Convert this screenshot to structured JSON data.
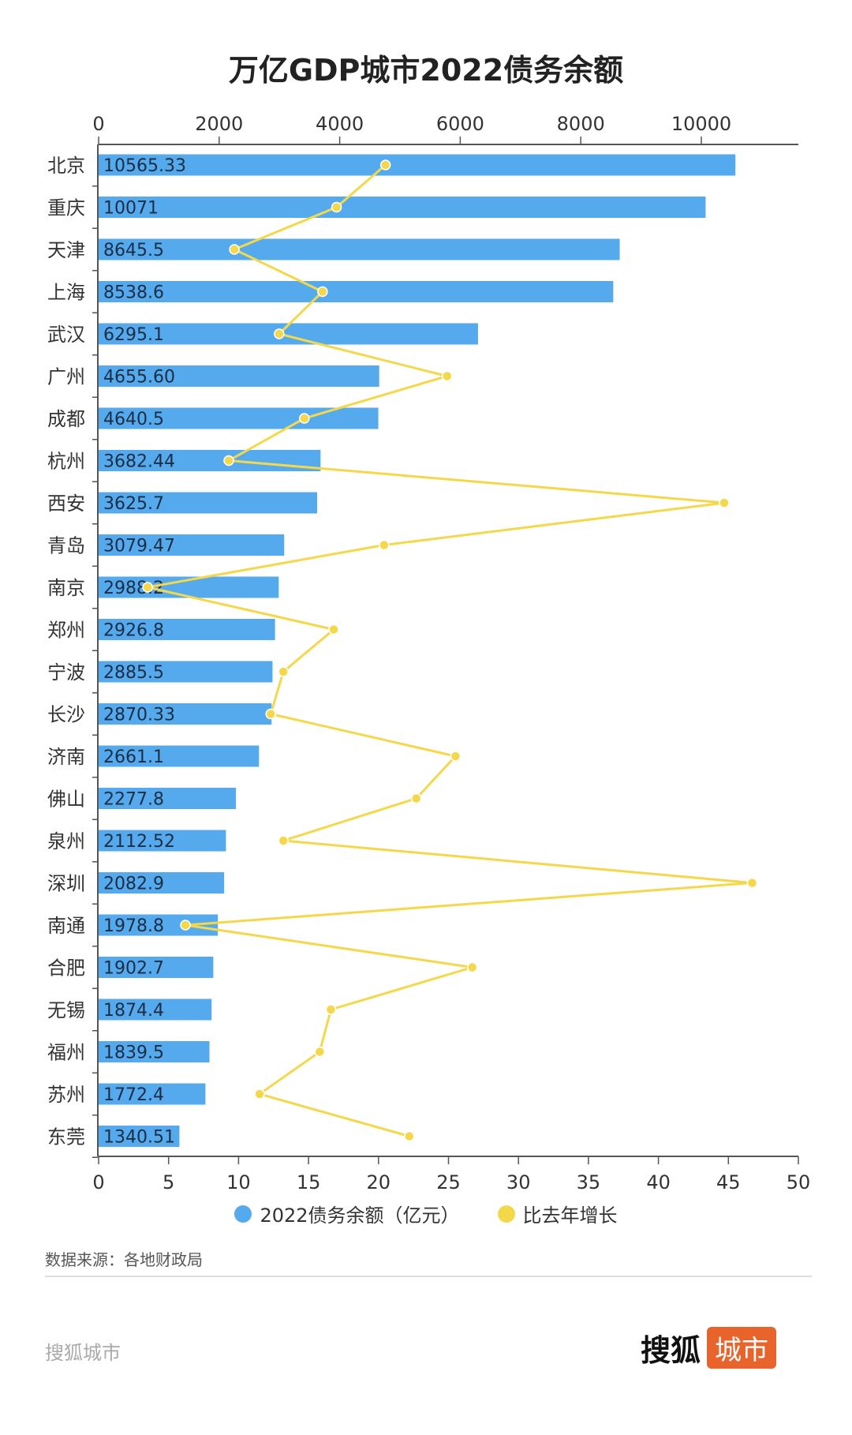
{
  "chart_data": {
    "type": "bar",
    "title": "万亿GDP城市2022债务余额",
    "categories": [
      "北京",
      "重庆",
      "天津",
      "上海",
      "武汉",
      "广州",
      "成都",
      "杭州",
      "西安",
      "青岛",
      "南京",
      "郑州",
      "宁波",
      "长沙",
      "济南",
      "佛山",
      "泉州",
      "深圳",
      "南通",
      "合肥",
      "无锡",
      "福州",
      "苏州",
      "东莞"
    ],
    "series": [
      {
        "name": "2022债务余额（亿元）",
        "type": "bar",
        "axis": "top",
        "color": "#55aaee",
        "labels": [
          "10565.33",
          "10071",
          "8645.5",
          "8538.6",
          "6295.1",
          "4655.60",
          "4640.5",
          "3682.44",
          "3625.7",
          "3079.47",
          "2988.2",
          "2926.8",
          "2885.5",
          "2870.33",
          "2661.1",
          "2277.8",
          "2112.52",
          "2082.9",
          "1978.8",
          "1902.7",
          "1874.4",
          "1839.5",
          "1772.4",
          "1340.51"
        ],
        "values": [
          10565.33,
          10071,
          8645.5,
          8538.6,
          6295.1,
          4655.6,
          4640.5,
          3682.44,
          3625.7,
          3079.47,
          2988.2,
          2926.8,
          2885.5,
          2870.33,
          2661.1,
          2277.8,
          2112.52,
          2082.9,
          1978.8,
          1902.7,
          1874.4,
          1839.5,
          1772.4,
          1340.51
        ]
      },
      {
        "name": "比去年增长",
        "type": "line",
        "axis": "bottom",
        "color": "#f5d84a",
        "values": [
          20.5,
          17.0,
          9.7,
          16.0,
          12.9,
          24.9,
          14.7,
          9.3,
          44.7,
          20.4,
          3.5,
          16.8,
          13.2,
          12.3,
          25.5,
          22.7,
          13.2,
          46.7,
          6.2,
          26.7,
          16.6,
          15.8,
          11.5,
          22.2
        ]
      }
    ],
    "top_axis": {
      "range": [
        0,
        11600
      ],
      "ticks": [
        0,
        2000,
        4000,
        6000,
        8000,
        10000
      ]
    },
    "bottom_axis": {
      "range": [
        0,
        50
      ],
      "ticks": [
        0,
        5,
        10,
        15,
        20,
        25,
        30,
        35,
        40,
        45,
        50
      ]
    },
    "legend_position": "bottom",
    "grid": false
  },
  "source": "数据来源：各地财政局",
  "footer": {
    "left": "搜狐城市",
    "logo_text": "搜狐",
    "logo_badge": "城市"
  }
}
